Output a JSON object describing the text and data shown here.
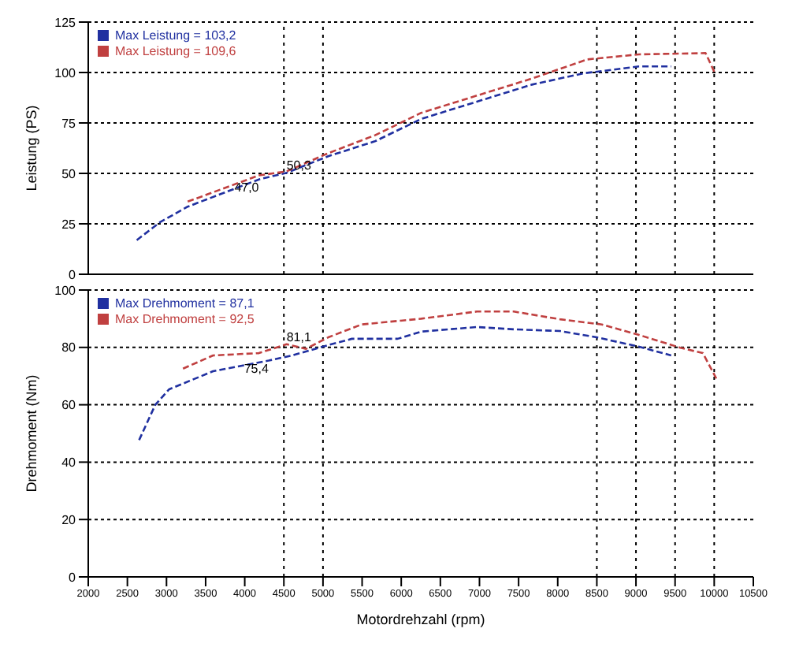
{
  "chart_data": [
    {
      "type": "line",
      "ylabel": "Leistung (PS)",
      "xlim": [
        2000,
        10500
      ],
      "ylim": [
        0,
        125
      ],
      "yticks": [
        0,
        25,
        50,
        75,
        100,
        125
      ],
      "grid": "y",
      "legend": "top left",
      "line_style": "dashed",
      "marker": "none",
      "tick_labels": "y",
      "ref_lines": [
        {
          "axis": "x",
          "value": 4500
        },
        {
          "axis": "x",
          "value": 5000
        },
        {
          "axis": "x",
          "value": 8500
        },
        {
          "axis": "x",
          "value": 9000
        },
        {
          "axis": "x",
          "value": 9500
        },
        {
          "axis": "x",
          "value": 10000
        }
      ],
      "annotations": [
        {
          "text": "47,0",
          "x": 4181,
          "y": 47
        },
        {
          "text": "50,3",
          "x": 4535,
          "y": 50.3
        }
      ],
      "series": [
        {
          "name": "Max Leistung = 103,2",
          "color": "#2030a0",
          "x": [
            2620,
            2917,
            3271,
            4181,
            4535,
            5067,
            5670,
            6255,
            7670,
            8330,
            9040,
            9450
          ],
          "values": [
            16.9,
            25.8,
            33.5,
            47,
            50.3,
            58.5,
            66,
            77,
            94,
            99.6,
            103,
            103
          ]
        },
        {
          "name": "Max Leistung = 109,6",
          "color": "#c04040",
          "x": [
            3271,
            4181,
            4535,
            5067,
            5670,
            6255,
            7670,
            8380,
            9040,
            9890,
            10010
          ],
          "values": [
            36,
            49,
            51,
            60,
            69,
            80,
            97,
            106.5,
            109,
            109.6,
            99.6
          ]
        }
      ]
    },
    {
      "type": "line",
      "xlabel": "Motordrehzahl (rpm)",
      "ylabel": "Drehmoment (Nm)",
      "xlim": [
        2000,
        10500
      ],
      "xticks": [
        2000,
        2500,
        3000,
        3500,
        4000,
        4500,
        5000,
        5500,
        6000,
        6500,
        7000,
        7500,
        8000,
        8500,
        9000,
        9500,
        10000,
        10500
      ],
      "ylim": [
        0,
        100
      ],
      "yticks": [
        0,
        20,
        40,
        60,
        80,
        100
      ],
      "grid": "y",
      "legend": "top left",
      "line_style": "dashed",
      "marker": "none",
      "ref_lines": [
        {
          "axis": "x",
          "value": 4500
        },
        {
          "axis": "x",
          "value": 5000
        },
        {
          "axis": "x",
          "value": 8500
        },
        {
          "axis": "x",
          "value": 9000
        },
        {
          "axis": "x",
          "value": 9500
        },
        {
          "axis": "x",
          "value": 10000
        }
      ],
      "annotations": [
        {
          "text": "75,4",
          "x": 4305,
          "y": 75.4
        },
        {
          "text": "81,1",
          "x": 4535,
          "y": 81.1
        }
      ],
      "series": [
        {
          "name": "Max Drehmoment = 87,1",
          "color": "#2030a0",
          "x": [
            2650,
            2857,
            3034,
            3596,
            4305,
            4606,
            5067,
            5369,
            5954,
            6255,
            6965,
            7438,
            8030,
            8500,
            9032,
            9450
          ],
          "values": [
            47.7,
            60,
            65.4,
            71.7,
            75.4,
            77.2,
            80.8,
            83,
            83,
            85.5,
            87.1,
            86.3,
            85.7,
            83.5,
            80.3,
            77.2
          ]
        },
        {
          "name": "Max Drehmoment = 92,5",
          "color": "#c04040",
          "x": [
            3211,
            3596,
            4181,
            4535,
            4784,
            5067,
            5493,
            6255,
            6965,
            7438,
            8030,
            8564,
            9032,
            9566,
            9855,
            10030
          ],
          "values": [
            72.6,
            77.2,
            78,
            81.1,
            79.5,
            83.5,
            88,
            90,
            92.5,
            92.5,
            89.8,
            88,
            84.4,
            79.9,
            78,
            69
          ]
        }
      ]
    }
  ]
}
